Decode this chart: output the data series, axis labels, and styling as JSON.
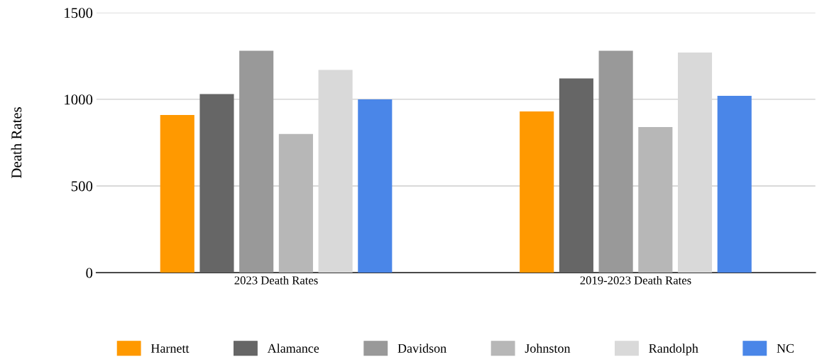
{
  "chart_data": {
    "type": "bar",
    "ylabel": "Death Rates",
    "categories": [
      "2023 Death Rates",
      "2019-2023 Death Rates"
    ],
    "series": [
      {
        "name": "Harnett",
        "color": "#ff9900",
        "values": [
          910,
          930
        ]
      },
      {
        "name": "Alamance",
        "color": "#666666",
        "values": [
          1030,
          1120
        ]
      },
      {
        "name": "Davidson",
        "color": "#999999",
        "values": [
          1280,
          1280
        ]
      },
      {
        "name": "Johnston",
        "color": "#b7b7b7",
        "values": [
          800,
          840
        ]
      },
      {
        "name": "Randolph",
        "color": "#d9d9d9",
        "values": [
          1170,
          1270
        ]
      },
      {
        "name": "NC",
        "color": "#4a86e8",
        "values": [
          1000,
          1020
        ]
      }
    ],
    "ylim": [
      0,
      1500
    ],
    "yticks": [
      0,
      500,
      1000,
      1500
    ],
    "grid": "y",
    "legend": "bottom"
  }
}
